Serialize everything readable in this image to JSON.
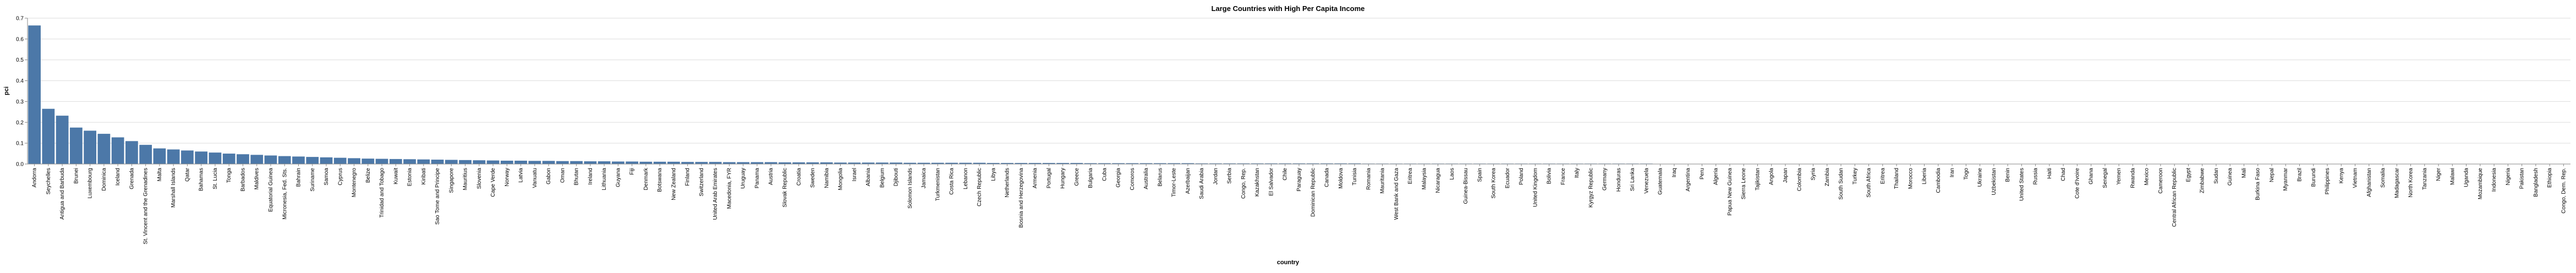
{
  "chart_data": {
    "type": "bar",
    "title": "Large Countries with High Per Capita Income",
    "xlabel": "country",
    "ylabel": "pci",
    "ylim": [
      0,
      0.7
    ],
    "yticks": [
      "0.0",
      "0.1",
      "0.2",
      "0.3",
      "0.4",
      "0.5",
      "0.6",
      "0.7"
    ],
    "grid": true,
    "bar_color": "#4c78a8",
    "categories": [
      "Andorra",
      "Seychelles",
      "Antigua and Barbuda",
      "Brunei",
      "Luxembourg",
      "Dominica",
      "Iceland",
      "Grenada",
      "St. Vincent and the Grenadines",
      "Malta",
      "Marshall Islands",
      "Qatar",
      "Bahamas",
      "St. Lucia",
      "Tonga",
      "Barbados",
      "Maldives",
      "Equatorial Guinea",
      "Micronesia, Fed. Sts.",
      "Bahrain",
      "Suriname",
      "Samoa",
      "Cyprus",
      "Montenegro",
      "Belize",
      "Trinidad and Tobago",
      "Kuwait",
      "Estonia",
      "Kiribati",
      "Sao Tome and Principe",
      "Singapore",
      "Mauritius",
      "Slovenia",
      "Cape Verde",
      "Norway",
      "Latvia",
      "Vanuatu",
      "Gabon",
      "Oman",
      "Bhutan",
      "Ireland",
      "Lithuania",
      "Guyana",
      "Fiji",
      "Denmark",
      "Botswana",
      "New Zealand",
      "Finland",
      "Switzerland",
      "United Arab Emirates",
      "Macedonia, FYR",
      "Uruguay",
      "Panama",
      "Austria",
      "Slovak Republic",
      "Croatia",
      "Sweden",
      "Namibia",
      "Mongolia",
      "Israel",
      "Albania",
      "Belgium",
      "Djibouti",
      "Solomon Islands",
      "Jamaica",
      "Turkmenistan",
      "Costa Rica",
      "Lebanon",
      "Czech Republic",
      "Libya",
      "Netherlands",
      "Bosnia and Herzegovina",
      "Armenia",
      "Portugal",
      "Hungary",
      "Greece",
      "Bulgaria",
      "Cuba",
      "Georgia",
      "Comoros",
      "Australia",
      "Belarus",
      "Timor-Leste",
      "Azerbaijan",
      "Saudi Arabia",
      "Jordan",
      "Serbia",
      "Congo, Rep.",
      "Kazakhstan",
      "El Salvador",
      "Chile",
      "Paraguay",
      "Dominican Republic",
      "Canada",
      "Moldova",
      "Tunisia",
      "Romania",
      "Mauritania",
      "West Bank and Gaza",
      "Eritrea",
      "Malaysia",
      "Nicaragua",
      "Laos",
      "Guinea-Bissau",
      "Spain",
      "South Korea",
      "Ecuador",
      "Poland",
      "United Kingdom",
      "Bolivia",
      "France",
      "Italy",
      "Kyrgyz Republic",
      "Germany",
      "Honduras",
      "Sri Lanka",
      "Venezuela",
      "Guatemala",
      "Iraq",
      "Argentina",
      "Peru",
      "Algeria",
      "Papua New Guinea",
      "Sierra Leone",
      "Tajikistan",
      "Angola",
      "Japan",
      "Colombia",
      "Syria",
      "Zambia",
      "South Sudan",
      "Turkey",
      "South Africa",
      "Eritrea",
      "Thailand",
      "Morocco",
      "Liberia",
      "Cambodia",
      "Iran",
      "Togo",
      "Ukraine",
      "Uzbekistan",
      "Benin",
      "United States",
      "Russia",
      "Haiti",
      "Chad",
      "Cote d'Ivoire",
      "Ghana",
      "Senegal",
      "Yemen",
      "Rwanda",
      "Mexico",
      "Cameroon",
      "Central African Republic",
      "Egypt",
      "Zimbabwe",
      "Sudan",
      "Guinea",
      "Mali",
      "Burkina Faso",
      "Nepal",
      "Myanmar",
      "Brazil",
      "Burundi",
      "Philippines",
      "Kenya",
      "Vietnam",
      "Afghanistan",
      "Somalia",
      "Madagascar",
      "North Korea",
      "Tanzania",
      "Niger",
      "Malawi",
      "Uganda",
      "Mozambique",
      "Indonesia",
      "Nigeria",
      "Pakistan",
      "Bangladesh",
      "Ethiopia",
      "Congo, Dem. Rep."
    ],
    "values": [
      0.665,
      0.265,
      0.232,
      0.175,
      0.16,
      0.145,
      0.128,
      0.11,
      0.092,
      0.075,
      0.07,
      0.065,
      0.06,
      0.055,
      0.05,
      0.047,
      0.044,
      0.041,
      0.038,
      0.036,
      0.034,
      0.032,
      0.03,
      0.028,
      0.026,
      0.025,
      0.024,
      0.023,
      0.022,
      0.021,
      0.02,
      0.019,
      0.018,
      0.017,
      0.016,
      0.016,
      0.015,
      0.015,
      0.014,
      0.014,
      0.013,
      0.013,
      0.012,
      0.012,
      0.011,
      0.011,
      0.011,
      0.01,
      0.01,
      0.01,
      0.009,
      0.009,
      0.009,
      0.009,
      0.008,
      0.008,
      0.008,
      0.008,
      0.007,
      0.007,
      0.007,
      0.007,
      0.007,
      0.006,
      0.006,
      0.006,
      0.006,
      0.006,
      0.006,
      0.005,
      0.005,
      0.005,
      0.005,
      0.005,
      0.005,
      0.005,
      0.004,
      0.004,
      0.004,
      0.004,
      0.004,
      0.004,
      0.004,
      0.004,
      0.003,
      0.003,
      0.003,
      0.003,
      0.003,
      0.003,
      0.003,
      0.003,
      0.003,
      0.003,
      0.003,
      0.003,
      0.002,
      0.002,
      0.002,
      0.002,
      0.002,
      0.002,
      0.002,
      0.002,
      0.002,
      0.002,
      0.002,
      0.002,
      0.002,
      0.002,
      0.002,
      0.002,
      0.002,
      0.002,
      0.002,
      0.002,
      0.002,
      0.001,
      0.001,
      0.001,
      0.001,
      0.001,
      0.001,
      0.001,
      0.001,
      0.001,
      0.001,
      0.001,
      0.001,
      0.001,
      0.001,
      0.001,
      0.001,
      0.001,
      0.001,
      0.001,
      0.001,
      0.001,
      0.001,
      0.001,
      0.001,
      0.001,
      0.001,
      0.001,
      0.001,
      0.001,
      0.001,
      0.001,
      0.001,
      0.001,
      0.001,
      0.001,
      0.001,
      0.001,
      0.001,
      0.001,
      0.001,
      0.001,
      0.001,
      0.001,
      0.001,
      0.001,
      0.001,
      0.001,
      0.001,
      0.001,
      0.001,
      0.0005,
      0.0005,
      0.0005,
      0.0005,
      0.0005,
      0.0005,
      0.0005,
      0.0005,
      0.0005,
      0.0005,
      0.0005,
      0.0005,
      0.0005,
      0.0005,
      0.0005,
      0.0005
    ]
  }
}
